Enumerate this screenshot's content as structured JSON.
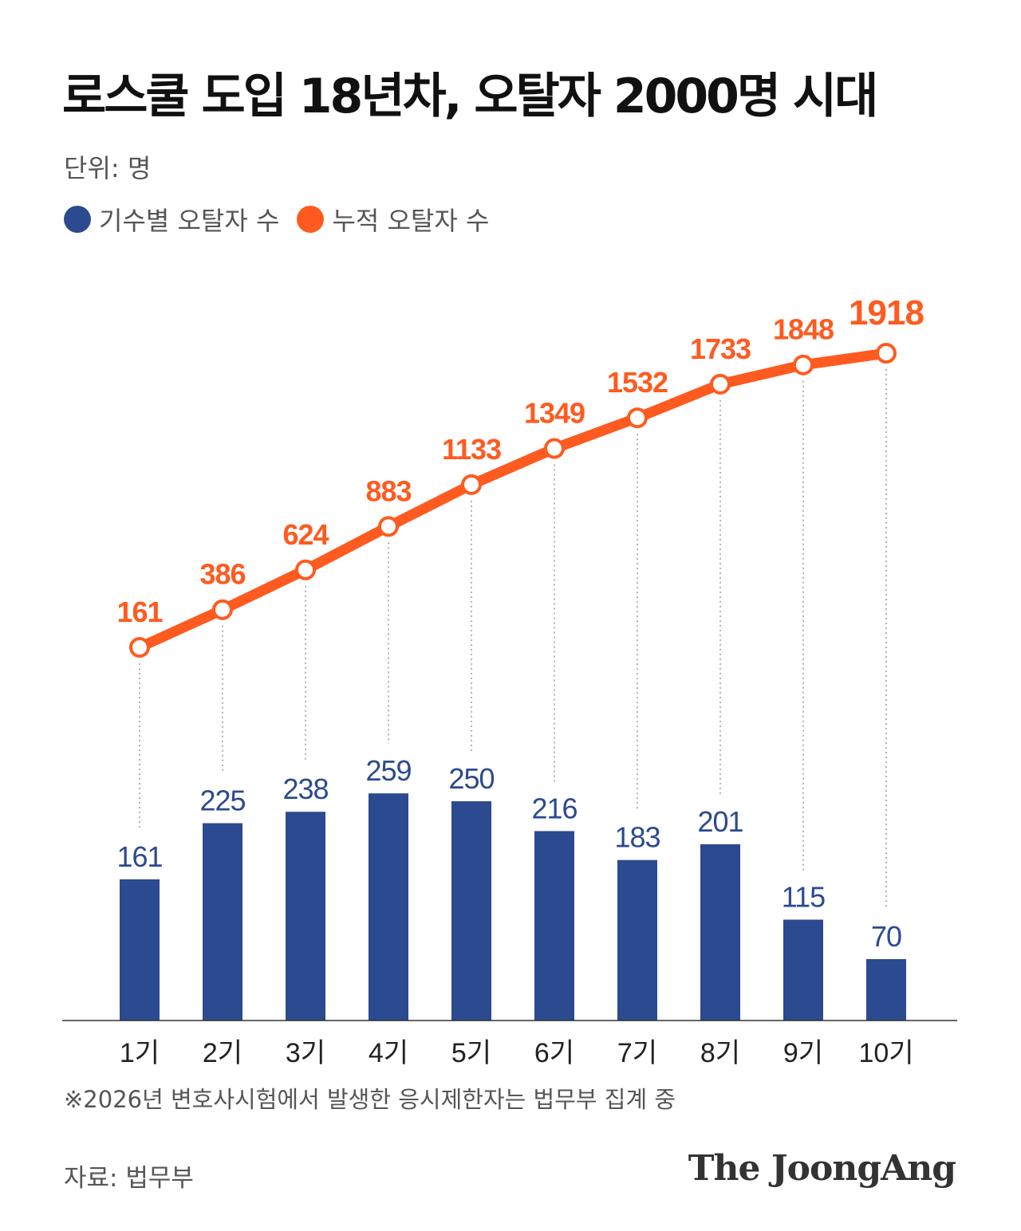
{
  "title": "로스쿨 도입 18년차, 오탈자 2000명 시대",
  "unit_label": "단위: 명",
  "legend": [
    {
      "label": "기수별 오탈자 수",
      "color": "#2b4a8f"
    },
    {
      "label": "누적 오탈자 수",
      "color": "#ff5a1f"
    }
  ],
  "note": "※2026년 변호사시험에서 발생한 응시제한자는 법무부 집계 중",
  "source": "자료: 법무부",
  "logo_text": "The JoongAng",
  "chart_data": {
    "type": "bar",
    "categories": [
      "1기",
      "2기",
      "3기",
      "4기",
      "5기",
      "6기",
      "7기",
      "8기",
      "9기",
      "10기"
    ],
    "series": [
      {
        "name": "기수별 오탈자 수",
        "type": "bar",
        "color": "#2b4a8f",
        "values": [
          161,
          225,
          238,
          259,
          250,
          216,
          183,
          201,
          115,
          70
        ]
      },
      {
        "name": "누적 오탈자 수",
        "type": "line",
        "color": "#ff5a1f",
        "values": [
          161,
          386,
          624,
          883,
          1133,
          1349,
          1532,
          1733,
          1848,
          1918
        ]
      }
    ]
  }
}
